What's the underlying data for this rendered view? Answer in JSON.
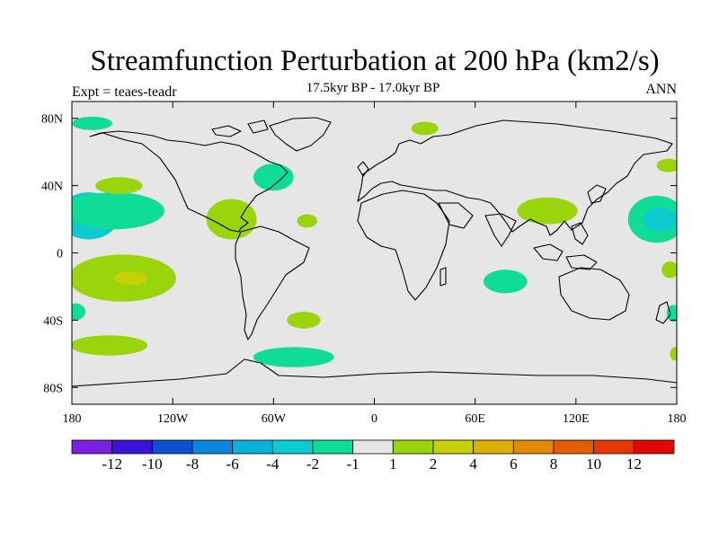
{
  "title": "Streamfunction Perturbation at 200 hPa (km2/s)",
  "subtitle": "17.5kyr BP - 17.0kyr BP",
  "left_label": "Expt = teaes-teadr",
  "right_label": "ANN",
  "map": {
    "projection": "cylindrical-equidistant",
    "lon_range": [
      -180,
      180
    ],
    "lat_range": [
      -90,
      90
    ],
    "background_color": "#e6e6e6",
    "lon_ticks": [
      {
        "value": -180,
        "label": "180"
      },
      {
        "value": -120,
        "label": "120W"
      },
      {
        "value": -60,
        "label": "60W"
      },
      {
        "value": 0,
        "label": "0"
      },
      {
        "value": 60,
        "label": "60E"
      },
      {
        "value": 120,
        "label": "120E"
      },
      {
        "value": 180,
        "label": "180"
      }
    ],
    "lat_ticks": [
      {
        "value": 80,
        "label": "80N"
      },
      {
        "value": 40,
        "label": "40N"
      },
      {
        "value": 0,
        "label": "0"
      },
      {
        "value": -40,
        "label": "40S"
      },
      {
        "value": -80,
        "label": "80S"
      }
    ]
  },
  "chart_data": {
    "type": "contour-map",
    "field": "streamfunction perturbation",
    "levels": [
      -12,
      -10,
      -8,
      -6,
      -4,
      -2,
      -1,
      1,
      2,
      4,
      6,
      8,
      10,
      12
    ],
    "colors": [
      "#7b1fe0",
      "#3a14d8",
      "#0f4fd6",
      "#0a86de",
      "#08b3d8",
      "#0ccbcf",
      "#0fdc97",
      "#e6e6e6",
      "#9ad50b",
      "#c7cf06",
      "#dcb003",
      "#e18a02",
      "#e65c03",
      "#e33a05",
      "#e30608"
    ],
    "regions": [
      {
        "lon": -170,
        "lat": 22,
        "rx": 18,
        "ry": 14,
        "value": -2.5
      },
      {
        "lon": -155,
        "lat": 25,
        "rx": 30,
        "ry": 11,
        "value": -1.5
      },
      {
        "lon": -152,
        "lat": 40,
        "rx": 14,
        "ry": 5,
        "value": 1.5
      },
      {
        "lon": -150,
        "lat": -15,
        "rx": 32,
        "ry": 14,
        "value": 1.5
      },
      {
        "lon": -145,
        "lat": -15,
        "rx": 10,
        "ry": 4,
        "value": 2.5
      },
      {
        "lon": -178,
        "lat": -35,
        "rx": 6,
        "ry": 5,
        "value": -1.5
      },
      {
        "lon": -158,
        "lat": -55,
        "rx": 23,
        "ry": 6,
        "value": 1.5
      },
      {
        "lon": -168,
        "lat": 77,
        "rx": 12,
        "ry": 4,
        "value": -1.5
      },
      {
        "lon": -85,
        "lat": 20,
        "rx": 15,
        "ry": 12,
        "value": 1.5
      },
      {
        "lon": -60,
        "lat": 45,
        "rx": 12,
        "ry": 8,
        "value": -1.5
      },
      {
        "lon": -40,
        "lat": 19,
        "rx": 6,
        "ry": 4,
        "value": 1.5
      },
      {
        "lon": -42,
        "lat": -40,
        "rx": 10,
        "ry": 5,
        "value": 1.5
      },
      {
        "lon": -48,
        "lat": -62,
        "rx": 24,
        "ry": 6,
        "value": -1.5
      },
      {
        "lon": 30,
        "lat": 74,
        "rx": 8,
        "ry": 4,
        "value": 1.5
      },
      {
        "lon": 103,
        "lat": 25,
        "rx": 18,
        "ry": 8,
        "value": 1.5
      },
      {
        "lon": 78,
        "lat": -17,
        "rx": 13,
        "ry": 7,
        "value": -1.5
      },
      {
        "lon": 168,
        "lat": 20,
        "rx": 17,
        "ry": 14,
        "value": -1.5
      },
      {
        "lon": 170,
        "lat": 20,
        "rx": 10,
        "ry": 7,
        "value": -2.5
      },
      {
        "lon": 175,
        "lat": 52,
        "rx": 7,
        "ry": 4,
        "value": 1.5
      },
      {
        "lon": 176,
        "lat": -10,
        "rx": 5,
        "ry": 5,
        "value": 1.5
      },
      {
        "lon": 178,
        "lat": -36,
        "rx": 4,
        "ry": 5,
        "value": -1.5
      },
      {
        "lon": 179,
        "lat": -60,
        "rx": 3,
        "ry": 4,
        "value": 1.5
      }
    ]
  },
  "colorbar": {
    "labels": [
      "-12",
      "-10",
      "-8",
      "-6",
      "-4",
      "-2",
      "-1",
      "1",
      "2",
      "4",
      "6",
      "8",
      "10",
      "12"
    ]
  }
}
